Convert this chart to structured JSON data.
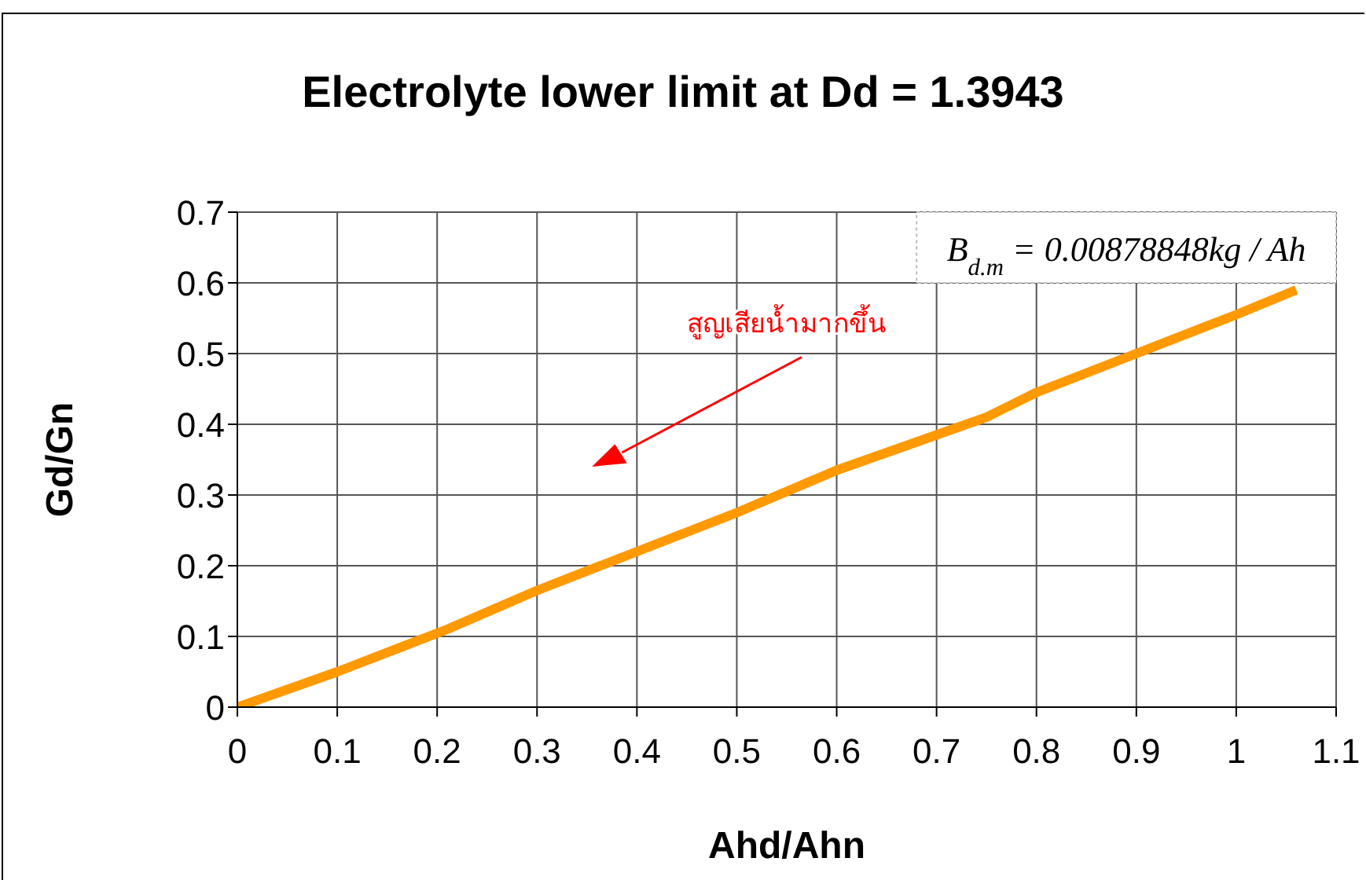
{
  "chart_data": {
    "type": "line",
    "title": "Electrolyte lower limit at Dd = 1.3943",
    "xlabel": "Ahd/Ahn",
    "ylabel": "Gd/Gn",
    "x": [
      0,
      0.1,
      0.21,
      0.3,
      0.4,
      0.5,
      0.6,
      0.7,
      0.75,
      0.8,
      0.9,
      1.0,
      1.06
    ],
    "series": [
      {
        "color": "#ff9900",
        "values": [
          0,
          0.05,
          0.11,
          0.165,
          0.22,
          0.275,
          0.335,
          0.385,
          0.41,
          0.445,
          0.5,
          0.555,
          0.59
        ]
      }
    ],
    "xlim": [
      0,
      1.1
    ],
    "xticks": [
      0,
      0.1,
      0.2,
      0.3,
      0.4,
      0.5,
      0.6,
      0.7,
      0.8,
      0.9,
      1,
      1.1
    ],
    "ylim": [
      0,
      0.7
    ],
    "yticks": [
      0,
      0.1,
      0.2,
      0.3,
      0.4,
      0.5,
      0.6,
      0.7
    ],
    "grid": true,
    "marker": "none",
    "line_style": "solid",
    "annotations": [
      "B$_{d.m}$ = 0.00878848kg / Ah",
      "สูญเสียน้ำมากขึ้น"
    ]
  }
}
